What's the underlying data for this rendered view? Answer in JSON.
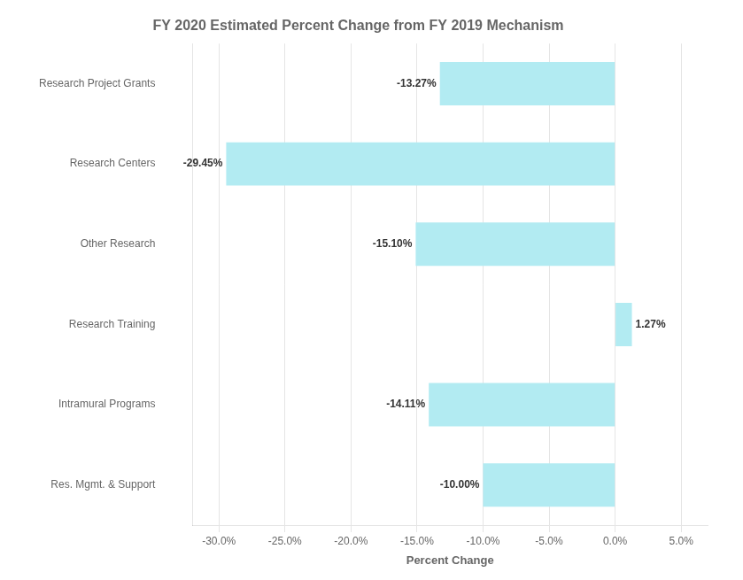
{
  "chart_data": {
    "type": "bar",
    "orientation": "horizontal",
    "title": "FY 2020 Estimated Percent Change from FY 2019 Mechanism",
    "categories": [
      "Research Project Grants",
      "Research Centers",
      "Other Research",
      "Research Training",
      "Intramural Programs",
      "Res. Mgmt. & Support"
    ],
    "values": [
      -13.27,
      -29.45,
      -15.1,
      1.27,
      -14.11,
      -10.0
    ],
    "value_labels": [
      "-13.27%",
      "-29.45%",
      "-15.10%",
      "1.27%",
      "-14.11%",
      "-10.00%"
    ],
    "data_labels": true,
    "color": "#b2ebf2",
    "xlabel": "Percent Change",
    "xlim": [
      -32,
      7
    ],
    "xticks": [
      {
        "value": -30,
        "label": "-30.0%"
      },
      {
        "value": -25,
        "label": "-25.0%"
      },
      {
        "value": -20,
        "label": "-20.0%"
      },
      {
        "value": -15,
        "label": "-15.0%"
      },
      {
        "value": -10,
        "label": "-10.0%"
      },
      {
        "value": -5,
        "label": "-5.0%"
      },
      {
        "value": 0,
        "label": "0.0%"
      },
      {
        "value": 5,
        "label": "5.0%"
      }
    ],
    "grid": true
  }
}
